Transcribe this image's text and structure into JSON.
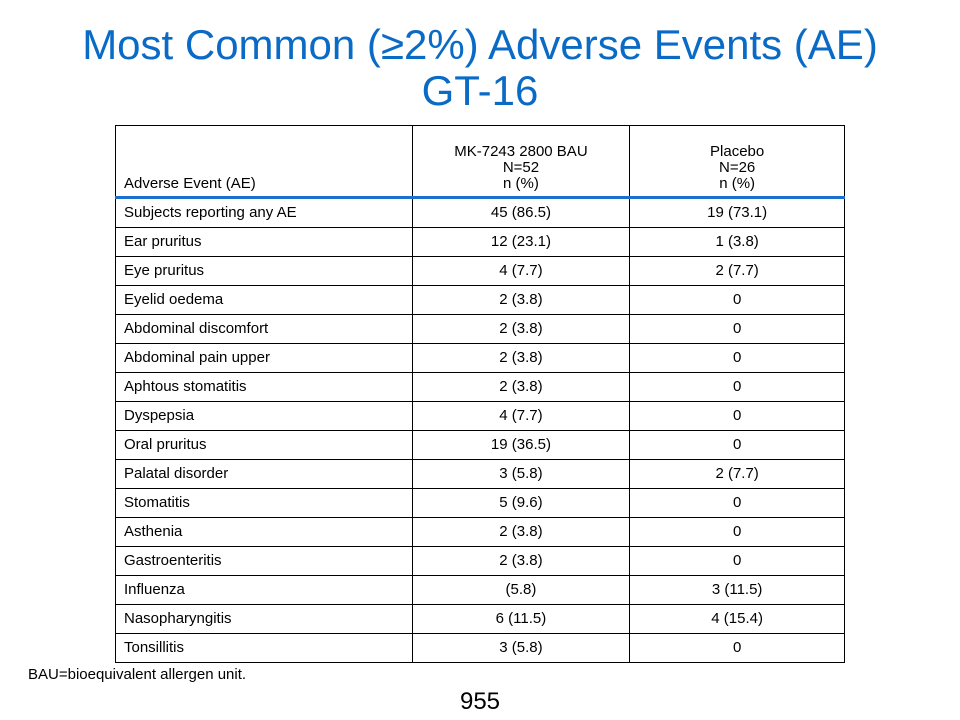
{
  "title": {
    "line1": "Most Common (≥2%) Adverse Events (AE)",
    "line2": "GT-16"
  },
  "table": {
    "headers": {
      "ae": "Adverse Event (AE)",
      "drug": [
        "MK-7243 2800 BAU",
        "N=52",
        "n (%)"
      ],
      "placebo": [
        "Placebo",
        "N=26",
        "n (%)"
      ]
    },
    "rows": [
      {
        "ae": "Subjects reporting any AE",
        "drug": "45 (86.5)",
        "placebo": "19 (73.1)"
      },
      {
        "ae": "Ear pruritus",
        "drug": "12 (23.1)",
        "placebo": "1 (3.8)"
      },
      {
        "ae": "Eye pruritus",
        "drug": "4 (7.7)",
        "placebo": "2 (7.7)"
      },
      {
        "ae": "Eyelid oedema",
        "drug": "2 (3.8)",
        "placebo": "0"
      },
      {
        "ae": "Abdominal discomfort",
        "drug": "2 (3.8)",
        "placebo": "0"
      },
      {
        "ae": "Abdominal pain upper",
        "drug": "2 (3.8)",
        "placebo": "0"
      },
      {
        "ae": "Aphtous stomatitis",
        "drug": "2 (3.8)",
        "placebo": "0"
      },
      {
        "ae": "Dyspepsia",
        "drug": "4 (7.7)",
        "placebo": "0"
      },
      {
        "ae": "Oral pruritus",
        "drug": "19 (36.5)",
        "placebo": "0"
      },
      {
        "ae": "Palatal disorder",
        "drug": "3 (5.8)",
        "placebo": "2 (7.7)"
      },
      {
        "ae": "Stomatitis",
        "drug": "5 (9.6)",
        "placebo": "0"
      },
      {
        "ae": "Asthenia",
        "drug": "2 (3.8)",
        "placebo": "0"
      },
      {
        "ae": "Gastroenteritis",
        "drug": "2 (3.8)",
        "placebo": "0"
      },
      {
        "ae": "Influenza",
        "drug": "(5.8)",
        "placebo": "3 (11.5)"
      },
      {
        "ae": "Nasopharyngitis",
        "drug": "6 (11.5)",
        "placebo": "4 (15.4)"
      },
      {
        "ae": "Tonsillitis",
        "drug": "3 (5.8)",
        "placebo": "0"
      }
    ]
  },
  "footnote": "BAU=bioequivalent allergen unit.",
  "page_number": "955",
  "colors": {
    "title": "#0A6BC6",
    "header_rule": "#1B6FCF"
  }
}
